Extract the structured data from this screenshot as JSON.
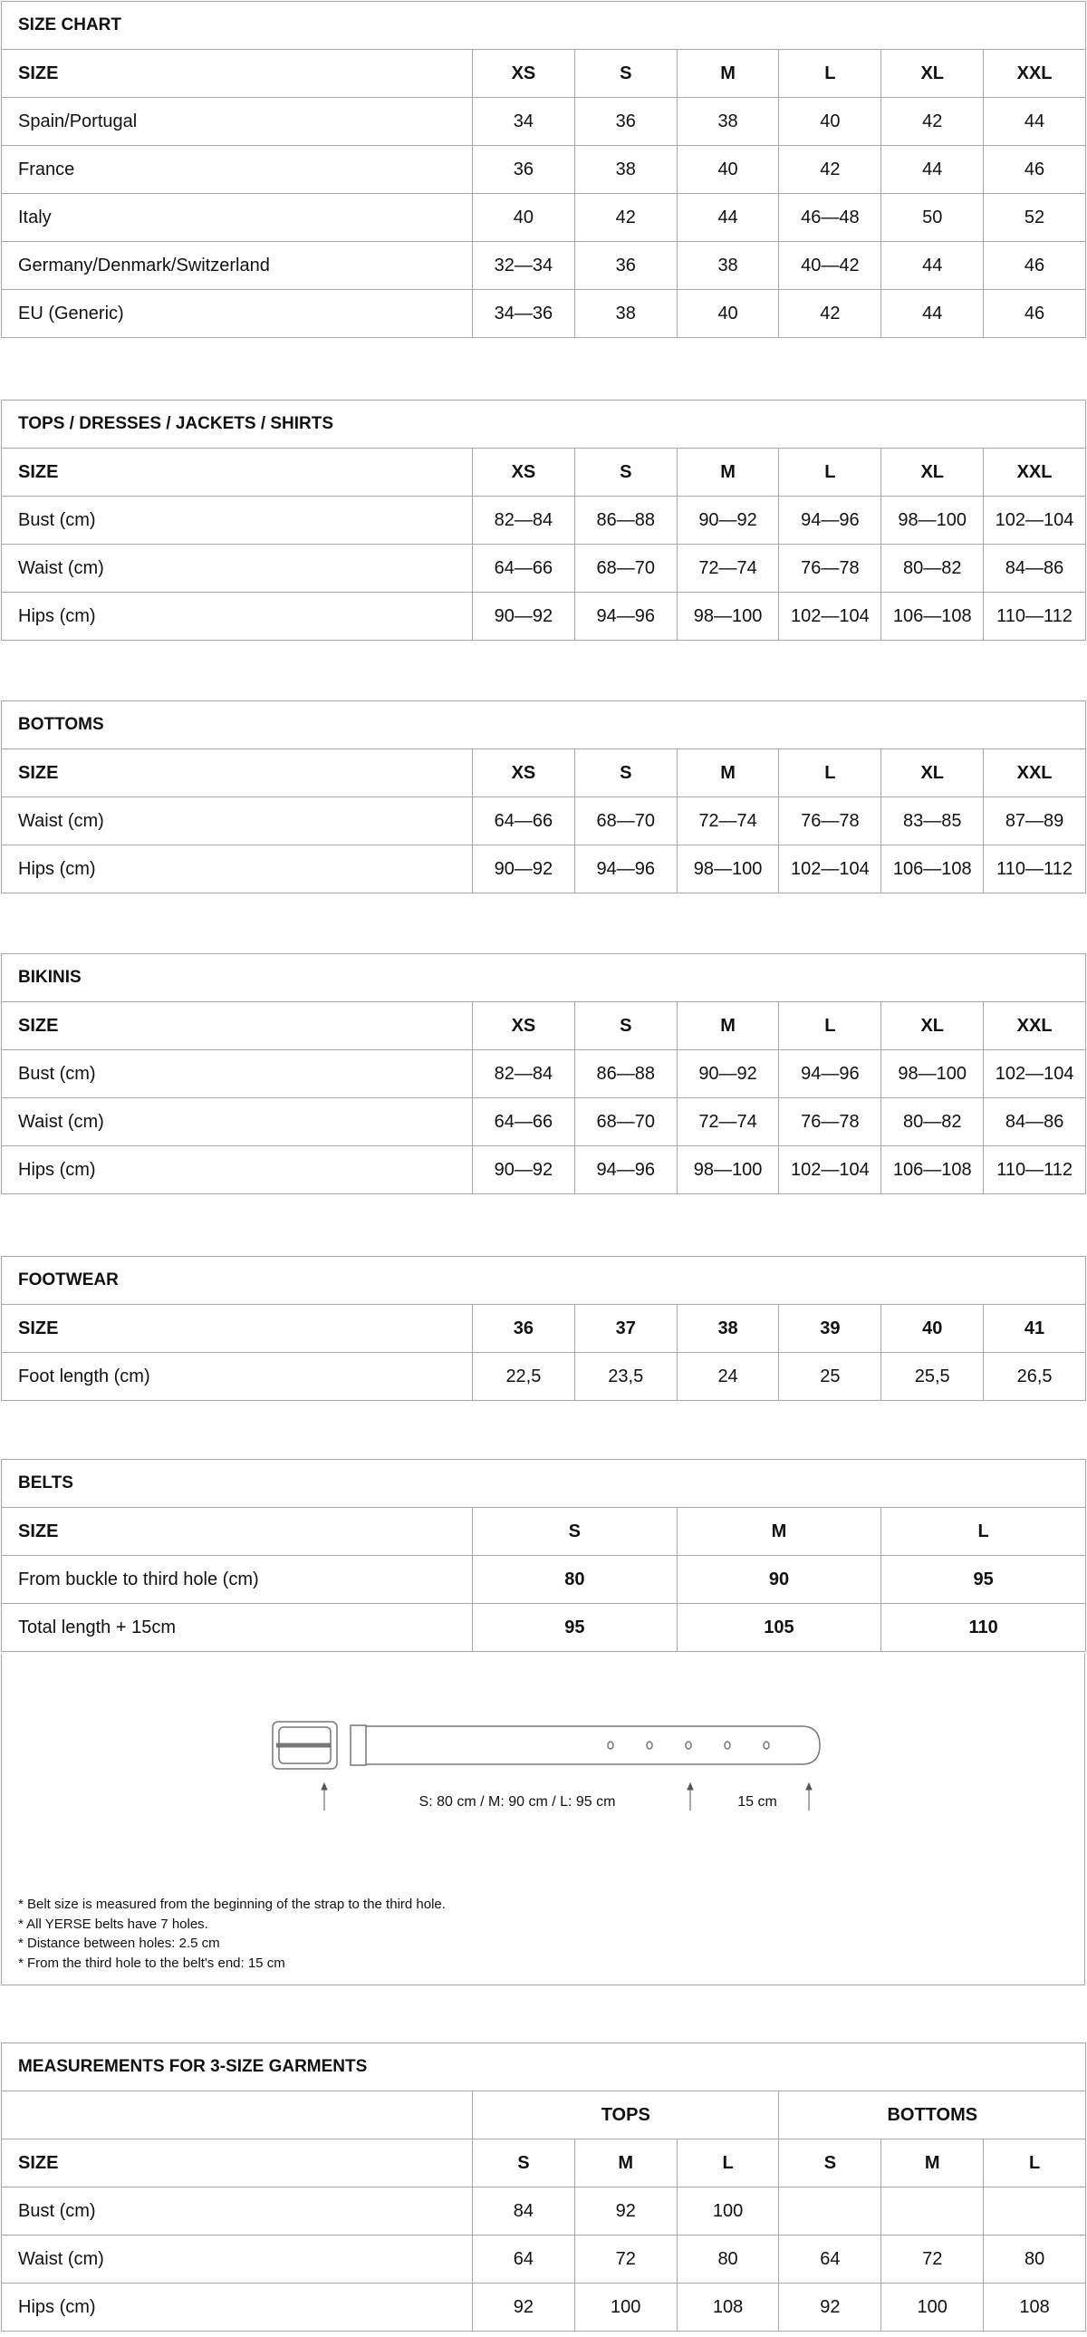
{
  "tables": [
    {
      "id": "size-chart",
      "title": "SIZE CHART",
      "header": [
        "SIZE",
        "XS",
        "S",
        "M",
        "L",
        "XL",
        "XXL"
      ],
      "rows": [
        [
          "Spain/Portugal",
          "34",
          "36",
          "38",
          "40",
          "42",
          "44"
        ],
        [
          "France",
          "36",
          "38",
          "40",
          "42",
          "44",
          "46"
        ],
        [
          "Italy",
          "40",
          "42",
          "44",
          "46—48",
          "50",
          "52"
        ],
        [
          "Germany/Denmark/Switzerland",
          "32—34",
          "36",
          "38",
          "40—42",
          "44",
          "46"
        ],
        [
          "EU (Generic)",
          "34—36",
          "38",
          "40",
          "42",
          "44",
          "46"
        ]
      ]
    },
    {
      "id": "tops",
      "title": "TOPS / DRESSES / JACKETS / SHIRTS",
      "header": [
        "SIZE",
        "XS",
        "S",
        "M",
        "L",
        "XL",
        "XXL"
      ],
      "rows": [
        [
          "Bust (cm)",
          "82—84",
          "86—88",
          "90—92",
          "94—96",
          "98—100",
          "102—104"
        ],
        [
          "Waist (cm)",
          "64—66",
          "68—70",
          "72—74",
          "76—78",
          "80—82",
          "84—86"
        ],
        [
          "Hips (cm)",
          "90—92",
          "94—96",
          "98—100",
          "102—104",
          "106—108",
          "110—112"
        ]
      ]
    },
    {
      "id": "bottoms",
      "title": "BOTTOMS",
      "header": [
        "SIZE",
        "XS",
        "S",
        "M",
        "L",
        "XL",
        "XXL"
      ],
      "rows": [
        [
          "Waist (cm)",
          "64—66",
          "68—70",
          "72—74",
          "76—78",
          "83—85",
          "87—89"
        ],
        [
          "Hips (cm)",
          "90—92",
          "94—96",
          "98—100",
          "102—104",
          "106—108",
          "110—112"
        ]
      ]
    },
    {
      "id": "bikinis",
      "title": "BIKINIS",
      "header": [
        "SIZE",
        "XS",
        "S",
        "M",
        "L",
        "XL",
        "XXL"
      ],
      "rows": [
        [
          "Bust (cm)",
          "82—84",
          "86—88",
          "90—92",
          "94—96",
          "98—100",
          "102—104"
        ],
        [
          "Waist (cm)",
          "64—66",
          "68—70",
          "72—74",
          "76—78",
          "80—82",
          "84—86"
        ],
        [
          "Hips (cm)",
          "90—92",
          "94—96",
          "98—100",
          "102—104",
          "106—108",
          "110—112"
        ]
      ]
    },
    {
      "id": "footwear",
      "title": "FOOTWEAR",
      "header": [
        "SIZE",
        "36",
        "37",
        "38",
        "39",
        "40",
        "41"
      ],
      "rows": [
        [
          "Foot length (cm)",
          "22,5",
          "23,5",
          "24",
          "25",
          "25,5",
          "26,5"
        ]
      ]
    },
    {
      "id": "belts",
      "title": "BELTS",
      "header": [
        "SIZE",
        "S",
        "M",
        "L"
      ],
      "bold_values": true,
      "rows": [
        [
          "From buckle to third hole (cm)",
          "80",
          "90",
          "95"
        ],
        [
          "Total length +  15cm",
          "95",
          "105",
          "110"
        ]
      ]
    }
  ],
  "belt_diagram": {
    "length_label": "S: 80 cm / M: 90 cm / L: 95 cm",
    "end_label": "15 cm",
    "notes": [
      "* Belt size is measured from the beginning of the strap to the third hole.",
      "* All YERSE belts have 7 holes.",
      "* Distance between holes: 2.5 cm",
      "* From the third hole to the belt's end: 15 cm"
    ]
  },
  "measurements": {
    "title": "MEASUREMENTS FOR 3-SIZE GARMENTS",
    "groups": [
      "TOPS",
      "BOTTOMS"
    ],
    "header": [
      "SIZE",
      "S",
      "M",
      "L",
      "S",
      "M",
      "L"
    ],
    "rows": [
      [
        "Bust (cm)",
        "84",
        "92",
        "100",
        "",
        "",
        ""
      ],
      [
        "Waist (cm)",
        "64",
        "72",
        "80",
        "64",
        "72",
        "80"
      ],
      [
        "Hips (cm)",
        "92",
        "100",
        "108",
        "92",
        "100",
        "108"
      ]
    ]
  }
}
